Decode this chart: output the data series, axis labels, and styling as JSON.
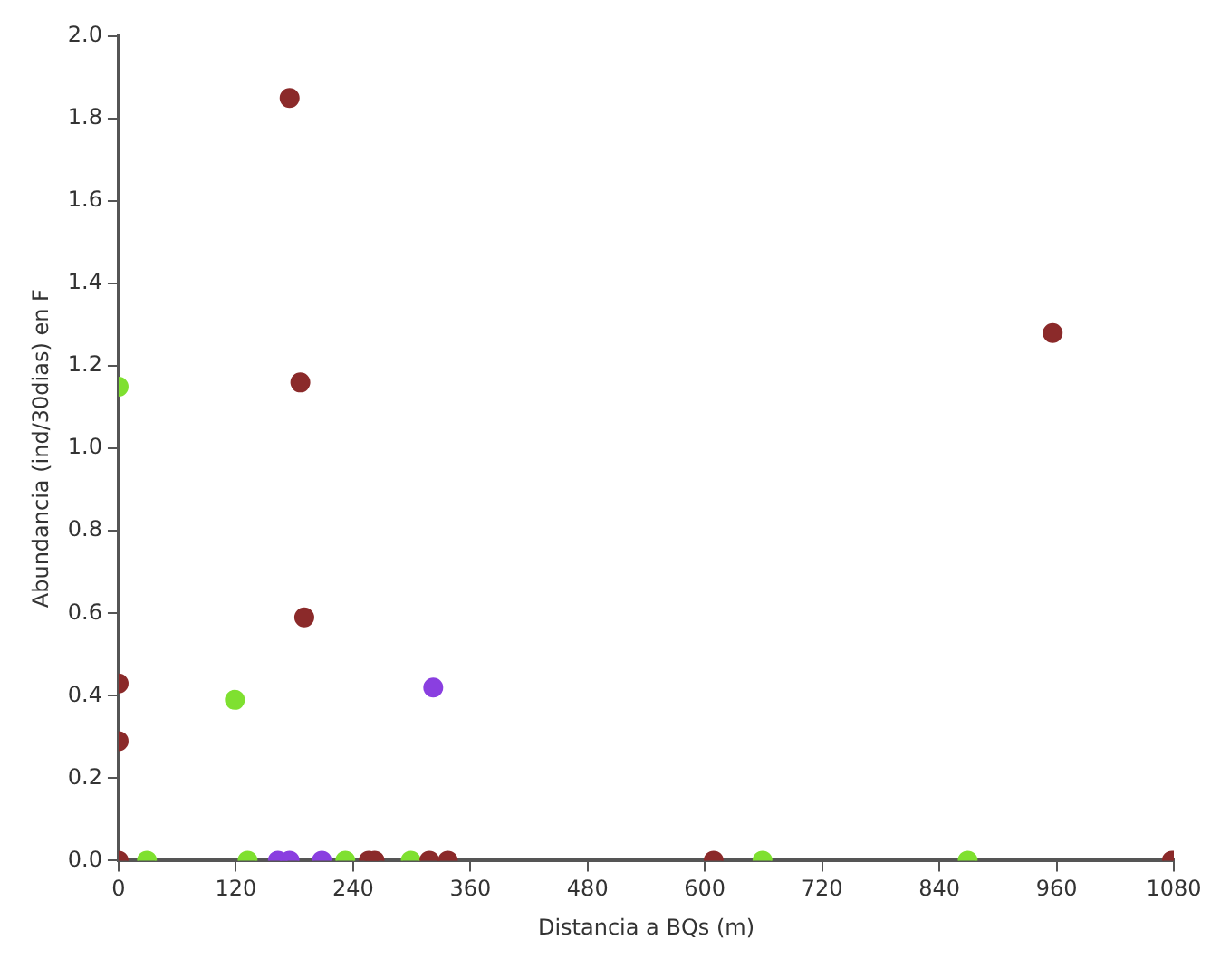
{
  "chart_data": {
    "type": "scatter",
    "xlabel": "Distancia a BQs (m)",
    "ylabel": "Abundancia (ind/30dias) en F",
    "xlim": [
      0,
      1080
    ],
    "xticks": [
      0,
      120,
      240,
      360,
      480,
      600,
      720,
      840,
      960,
      1080
    ],
    "ylim": [
      0,
      2
    ],
    "yticks": [
      {
        "value": 0,
        "label": "0.0"
      },
      {
        "value": 0.2,
        "label": "0.2"
      },
      {
        "value": 0.4,
        "label": "0.4"
      },
      {
        "value": 0.6,
        "label": "0.6"
      },
      {
        "value": 0.8,
        "label": "0.8"
      },
      {
        "value": 1,
        "label": "1.0"
      },
      {
        "value": 1.2,
        "label": "1.2"
      },
      {
        "value": 1.4,
        "label": "1.4"
      },
      {
        "value": 1.6,
        "label": "1.6"
      },
      {
        "value": 1.8,
        "label": "1.8"
      },
      {
        "value": 2,
        "label": "2.0"
      }
    ],
    "grid": false,
    "legend": false,
    "marker": "circle",
    "series": [
      {
        "color": "#8b2a2a",
        "x": [
          0,
          0,
          0,
          175,
          186,
          190,
          256,
          262,
          318,
          337,
          609,
          956,
          1078
        ],
        "values": [
          0,
          0.43,
          0.29,
          1.85,
          1.16,
          0.59,
          0,
          0,
          0,
          0,
          0,
          1.28,
          0
        ]
      },
      {
        "color": "#7fe030",
        "x": [
          0,
          29,
          119,
          132,
          232,
          299,
          659,
          869
        ],
        "values": [
          1.15,
          0,
          0.39,
          0,
          0,
          0,
          0,
          0
        ]
      },
      {
        "color": "#8a3fe0",
        "x": [
          163,
          175,
          208,
          322
        ],
        "values": [
          0,
          0,
          0,
          0.42
        ]
      }
    ]
  }
}
